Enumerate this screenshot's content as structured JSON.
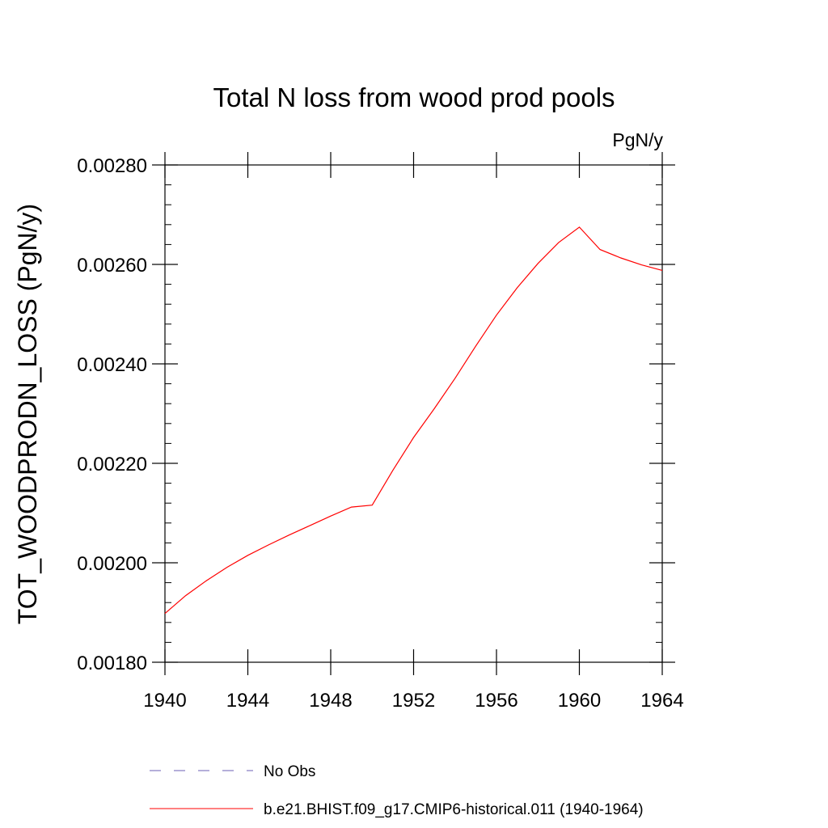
{
  "chart_data": {
    "type": "line",
    "title": "Total N loss from wood prod pools",
    "units": "PgN/y",
    "ylabel": "TOT_WOODPRODN_LOSS  (PgN/y)",
    "xlabel": "",
    "xlim": [
      1940,
      1964
    ],
    "ylim": [
      0.0018,
      0.0028
    ],
    "x_ticks": [
      1940,
      1944,
      1948,
      1952,
      1956,
      1960,
      1964
    ],
    "x_tick_labels": [
      "1940",
      "1944",
      "1948",
      "1952",
      "1956",
      "1960",
      "1964"
    ],
    "y_ticks": [
      0.0018,
      0.002,
      0.0022,
      0.0024,
      0.0026,
      0.0028
    ],
    "y_tick_labels": [
      "0.00180",
      "0.00200",
      "0.00220",
      "0.00240",
      "0.00260",
      "0.00280"
    ],
    "grid": false,
    "legend_position": "bottom",
    "series": [
      {
        "name": "b.e21.BHIST.f09_g17.CMIP6-historical.011 (1940-1964)",
        "color": "#ff0000",
        "dash": "solid",
        "x": [
          1940,
          1941,
          1942,
          1943,
          1944,
          1945,
          1946,
          1947,
          1948,
          1949,
          1950,
          1951,
          1952,
          1953,
          1954,
          1955,
          1956,
          1957,
          1958,
          1959,
          1960,
          1961,
          1962,
          1963,
          1964
        ],
        "values": [
          0.001898,
          0.001934,
          0.001964,
          0.001991,
          0.002015,
          0.002036,
          0.002056,
          0.002075,
          0.002094,
          0.002112,
          0.002116,
          0.002186,
          0.002252,
          0.00231,
          0.002371,
          0.002436,
          0.002498,
          0.002553,
          0.002602,
          0.002644,
          0.002675,
          0.00263,
          0.002613,
          0.002599,
          0.002588
        ]
      },
      {
        "name": "No Obs",
        "color": "#6b5fb5",
        "dash": "dashed",
        "x": [],
        "values": []
      }
    ]
  }
}
